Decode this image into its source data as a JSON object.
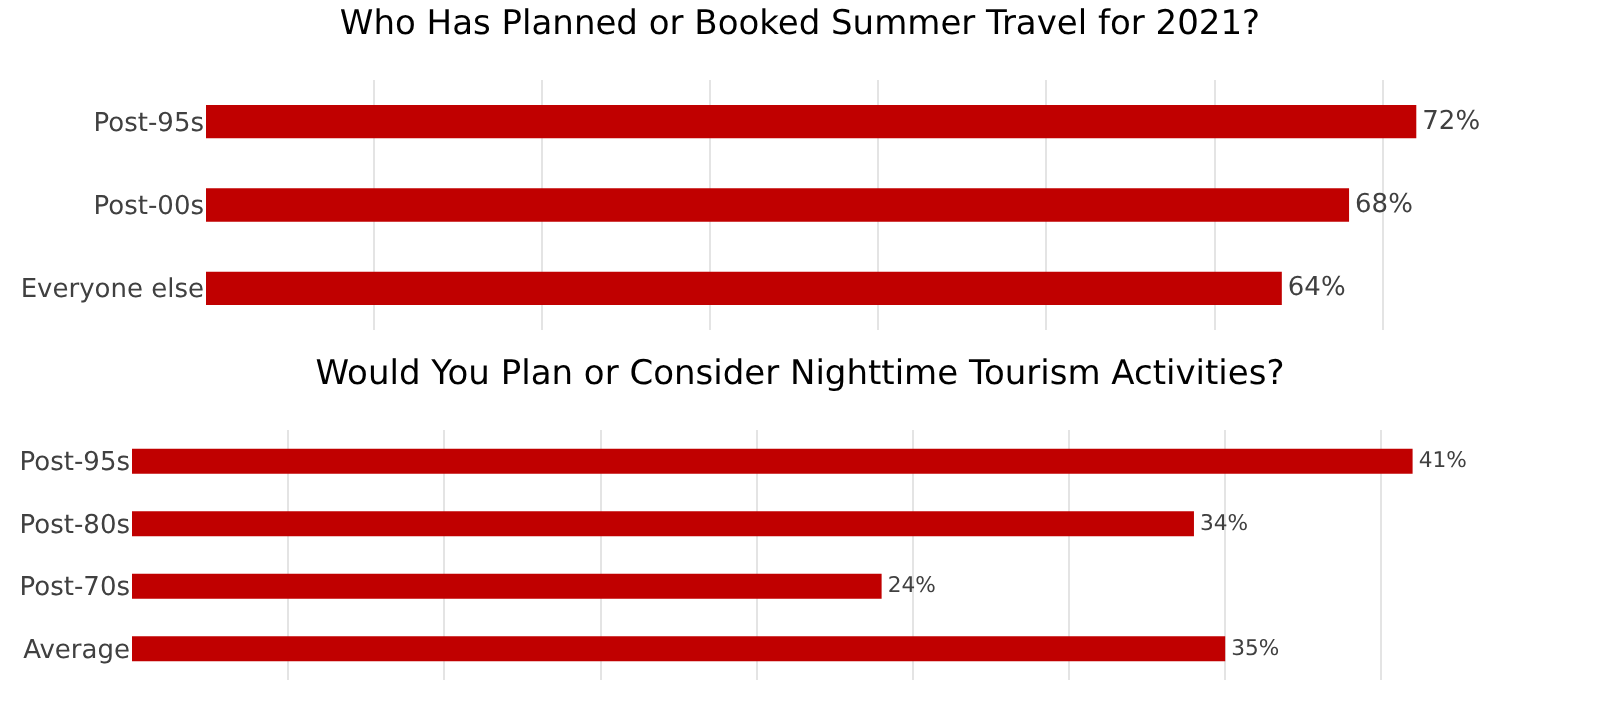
{
  "chart_data": [
    {
      "type": "bar",
      "orientation": "horizontal",
      "title": "Who Has Planned or Booked Summer Travel for 2021?",
      "categories": [
        "Post-95s",
        "Post-00s",
        "Everyone else"
      ],
      "values": [
        72,
        68,
        64
      ],
      "value_labels": [
        "72%",
        "68%",
        "64%"
      ],
      "color": "#c00000",
      "grid": "x",
      "tick_labels": "y"
    },
    {
      "type": "bar",
      "orientation": "horizontal",
      "title": "Would You Plan or Consider Nighttime Tourism Activities?",
      "categories": [
        "Post-95s",
        "Post-80s",
        "Post-70s",
        "Average"
      ],
      "values": [
        41,
        34,
        24,
        35
      ],
      "value_labels": [
        "41%",
        "34%",
        "24%",
        "35%"
      ],
      "color": "#c00000",
      "grid": "x",
      "tick_labels": "y"
    }
  ]
}
